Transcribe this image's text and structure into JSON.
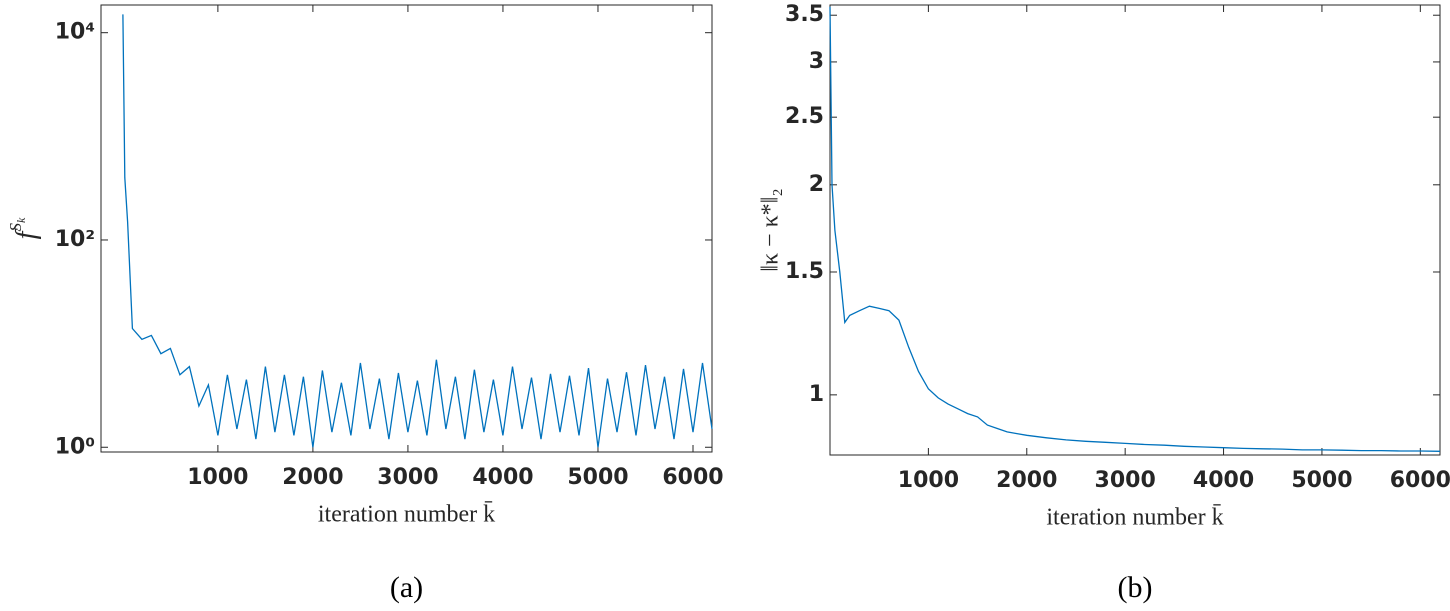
{
  "chart_data": [
    {
      "type": "line",
      "caption": "(a)",
      "xlabel": "iteration number k̄",
      "ylabel": {
        "base": "f",
        "sup": "S",
        "sub": "k"
      },
      "log_y": true,
      "grid": false,
      "xlim": [
        -230,
        6200
      ],
      "ylim": [
        0.9,
        18500
      ],
      "xticks": [
        1000,
        2000,
        3000,
        4000,
        5000,
        6000
      ],
      "yticks": [
        {
          "value": 1,
          "label": "10⁰"
        },
        {
          "value": 100,
          "label": "10²"
        },
        {
          "value": 10000,
          "label": "10⁴"
        }
      ],
      "series": [
        {
          "color": "#0072bd",
          "x": [
            0,
            20,
            50,
            100,
            200,
            300,
            400,
            500,
            600,
            700,
            800,
            900,
            1000,
            1100,
            1200,
            1300,
            1400,
            1500,
            1600,
            1700,
            1800,
            1900,
            2000,
            2100,
            2200,
            2300,
            2400,
            2500,
            2600,
            2700,
            2800,
            2900,
            3000,
            3100,
            3200,
            3300,
            3400,
            3500,
            3600,
            3700,
            3800,
            3900,
            4000,
            4100,
            4200,
            4300,
            4400,
            4500,
            4600,
            4700,
            4800,
            4900,
            5000,
            5100,
            5200,
            5300,
            5400,
            5500,
            5600,
            5700,
            5800,
            5900,
            6000,
            6100,
            6200
          ],
          "values": [
            15000,
            400,
            150,
            14,
            11,
            12,
            8,
            9,
            5,
            6,
            2.5,
            4,
            1.3,
            5,
            1.5,
            4.5,
            1.2,
            6,
            1.4,
            5,
            1.3,
            4.8,
            1.0,
            5.5,
            1.4,
            4.2,
            1.3,
            6.5,
            1.5,
            4.6,
            1.2,
            5.2,
            1.4,
            4.4,
            1.3,
            7,
            1.5,
            4.8,
            1.2,
            5.6,
            1.4,
            4.5,
            1.3,
            6,
            1.5,
            4.7,
            1.2,
            5.1,
            1.4,
            4.9,
            1.3,
            5.8,
            1.0,
            4.6,
            1.4,
            5.3,
            1.3,
            6.2,
            1.5,
            4.8,
            1.2,
            5.7,
            1.4,
            6.5,
            1.5
          ]
        }
      ]
    },
    {
      "type": "line",
      "caption": "(b)",
      "xlabel": "iteration number k̄",
      "ylabel": "‖κ − κ*‖₂",
      "log_y": true,
      "grid": false,
      "xlim": [
        0,
        6200
      ],
      "ylim": [
        0.82,
        3.62
      ],
      "xticks": [
        1000,
        2000,
        3000,
        4000,
        5000,
        6000
      ],
      "yticks": [
        1,
        1.5,
        2,
        2.5,
        3,
        3.5
      ],
      "series": [
        {
          "color": "#0072bd",
          "x": [
            0,
            20,
            50,
            100,
            150,
            200,
            300,
            400,
            500,
            600,
            700,
            800,
            900,
            1000,
            1100,
            1200,
            1300,
            1400,
            1500,
            1600,
            1700,
            1800,
            1900,
            2000,
            2200,
            2400,
            2600,
            2800,
            3000,
            3200,
            3400,
            3600,
            3800,
            4000,
            4200,
            4400,
            4600,
            4800,
            5000,
            5200,
            5400,
            5600,
            5800,
            6000,
            6200
          ],
          "values": [
            3.6,
            2.0,
            1.72,
            1.5,
            1.27,
            1.3,
            1.32,
            1.34,
            1.33,
            1.32,
            1.28,
            1.17,
            1.08,
            1.02,
            0.99,
            0.97,
            0.955,
            0.94,
            0.93,
            0.905,
            0.895,
            0.885,
            0.88,
            0.875,
            0.868,
            0.862,
            0.858,
            0.855,
            0.852,
            0.849,
            0.847,
            0.844,
            0.842,
            0.84,
            0.838,
            0.837,
            0.836,
            0.834,
            0.834,
            0.833,
            0.832,
            0.832,
            0.831,
            0.831,
            0.83
          ]
        }
      ]
    }
  ]
}
